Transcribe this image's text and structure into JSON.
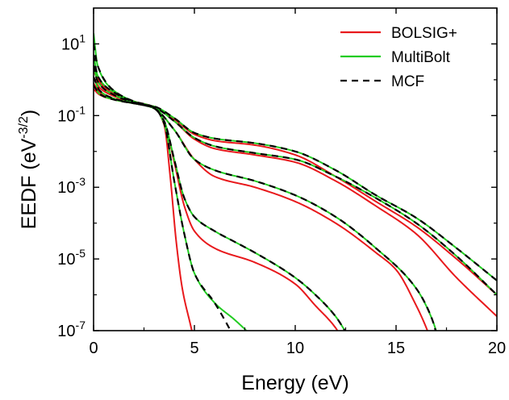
{
  "chart_data": {
    "type": "line",
    "xlabel": "Energy (eV)",
    "ylabel_main": "EEDF (eV",
    "ylabel_exp": "-3/2",
    "ylabel_close": ")",
    "xlim": [
      0,
      20
    ],
    "ylim": [
      1e-07,
      100
    ],
    "y_scale": "log",
    "x_ticks": [
      {
        "v": 0,
        "label": "0"
      },
      {
        "v": 5,
        "label": "5"
      },
      {
        "v": 10,
        "label": "10"
      },
      {
        "v": 15,
        "label": "15"
      },
      {
        "v": 20,
        "label": "20"
      }
    ],
    "y_ticks": [
      {
        "v": 10,
        "base": "10",
        "exp": "1"
      },
      {
        "v": 0.1,
        "base": "10",
        "exp": "-1"
      },
      {
        "v": 0.001,
        "base": "10",
        "exp": "-3"
      },
      {
        "v": 1e-05,
        "base": "10",
        "exp": "-5"
      },
      {
        "v": 1e-07,
        "base": "10",
        "exp": "-7"
      }
    ],
    "grid": false,
    "legend_position": "top-right",
    "series": [
      {
        "name": "BOLSIG+",
        "color": "#e8191c",
        "dash": "none",
        "curves": [
          [
            [
              0,
              2.0
            ],
            [
              0.3,
              0.9
            ],
            [
              1,
              0.45
            ],
            [
              2,
              0.25
            ],
            [
              3,
              0.17
            ],
            [
              3.5,
              0.055
            ],
            [
              3.8,
              0.002
            ],
            [
              4.1,
              3e-05
            ],
            [
              4.4,
              1.5e-06
            ],
            [
              4.8,
              1.5e-07
            ],
            [
              5.3,
              1e-08
            ]
          ],
          [
            [
              0,
              1.8
            ],
            [
              0.3,
              0.8
            ],
            [
              1,
              0.4
            ],
            [
              2,
              0.24
            ],
            [
              3,
              0.16
            ],
            [
              3.5,
              0.07
            ],
            [
              4,
              0.005
            ],
            [
              4.5,
              0.0003
            ],
            [
              5,
              6e-05
            ],
            [
              6,
              2e-05
            ],
            [
              8,
              8e-06
            ],
            [
              10,
              2e-06
            ],
            [
              11,
              5e-07
            ],
            [
              12,
              1.2e-07
            ],
            [
              12.5,
              4e-08
            ]
          ],
          [
            [
              0,
              1.2
            ],
            [
              0.3,
              0.6
            ],
            [
              1,
              0.35
            ],
            [
              2,
              0.23
            ],
            [
              3,
              0.16
            ],
            [
              4,
              0.04
            ],
            [
              5,
              0.006
            ],
            [
              6,
              0.002
            ],
            [
              8,
              0.001
            ],
            [
              10,
              0.0004
            ],
            [
              12,
              0.0001
            ],
            [
              14,
              1.5e-05
            ],
            [
              15,
              5e-06
            ],
            [
              16,
              5e-07
            ],
            [
              16.5,
              1.2e-07
            ],
            [
              17,
              2e-08
            ]
          ],
          [
            [
              0,
              0.8
            ],
            [
              0.3,
              0.45
            ],
            [
              1,
              0.3
            ],
            [
              2,
              0.22
            ],
            [
              3,
              0.17
            ],
            [
              4,
              0.07
            ],
            [
              5,
              0.022
            ],
            [
              6,
              0.012
            ],
            [
              8,
              0.008
            ],
            [
              10,
              0.005
            ],
            [
              12,
              0.0015
            ],
            [
              14,
              0.0003
            ],
            [
              16,
              5e-05
            ],
            [
              18,
              3e-06
            ],
            [
              20,
              2.5e-07
            ]
          ],
          [
            [
              0,
              0.55
            ],
            [
              0.3,
              0.38
            ],
            [
              1,
              0.28
            ],
            [
              2,
              0.22
            ],
            [
              3,
              0.18
            ],
            [
              4,
              0.08
            ],
            [
              5,
              0.03
            ],
            [
              6,
              0.02
            ],
            [
              8,
              0.015
            ],
            [
              10,
              0.008
            ],
            [
              12,
              0.002
            ],
            [
              14,
              0.0004
            ],
            [
              16,
              8e-05
            ],
            [
              18,
              1e-05
            ],
            [
              20,
              1e-06
            ]
          ]
        ]
      },
      {
        "name": "MultiBolt",
        "color": "#22cc22",
        "dash": "none",
        "curves": [
          [
            [
              0,
              20
            ],
            [
              0.2,
              2.5
            ],
            [
              1,
              0.5
            ],
            [
              2,
              0.25
            ],
            [
              3,
              0.17
            ],
            [
              3.5,
              0.06
            ],
            [
              4,
              0.0015
            ],
            [
              4.5,
              5e-05
            ],
            [
              5,
              4e-06
            ],
            [
              6,
              6e-07
            ],
            [
              7,
              2e-07
            ],
            [
              8,
              6e-08
            ]
          ],
          [
            [
              0,
              5
            ],
            [
              0.2,
              1.3
            ],
            [
              1,
              0.45
            ],
            [
              2,
              0.24
            ],
            [
              3,
              0.16
            ],
            [
              3.5,
              0.07
            ],
            [
              4,
              0.006
            ],
            [
              4.5,
              0.0005
            ],
            [
              5,
              0.00015
            ],
            [
              6,
              6e-05
            ],
            [
              7,
              3e-05
            ],
            [
              8,
              1.5e-05
            ],
            [
              10,
              3e-06
            ],
            [
              11,
              1e-06
            ],
            [
              12,
              2.5e-07
            ],
            [
              12.7,
              6e-08
            ]
          ],
          [
            [
              0,
              2.5
            ],
            [
              0.2,
              0.9
            ],
            [
              1,
              0.38
            ],
            [
              2,
              0.23
            ],
            [
              3,
              0.16
            ],
            [
              4,
              0.04
            ],
            [
              5,
              0.006
            ],
            [
              6,
              0.003
            ],
            [
              8,
              0.0015
            ],
            [
              10,
              0.0006
            ],
            [
              12,
              0.00015
            ],
            [
              14,
              2e-05
            ],
            [
              16,
              1.5e-06
            ],
            [
              16.8,
              2e-07
            ],
            [
              17.2,
              4e-08
            ]
          ],
          [
            [
              0,
              1.2
            ],
            [
              0.3,
              0.5
            ],
            [
              1,
              0.3
            ],
            [
              2,
              0.22
            ],
            [
              3,
              0.17
            ],
            [
              4,
              0.07
            ],
            [
              5,
              0.024
            ],
            [
              6,
              0.014
            ],
            [
              8,
              0.009
            ],
            [
              10,
              0.006
            ],
            [
              12,
              0.002
            ],
            [
              14,
              0.0005
            ],
            [
              16,
              0.0001
            ],
            [
              18,
              1.2e-05
            ],
            [
              20,
              1e-06
            ]
          ],
          [
            [
              0,
              0.7
            ],
            [
              0.3,
              0.4
            ],
            [
              1,
              0.28
            ],
            [
              2,
              0.22
            ],
            [
              3,
              0.18
            ],
            [
              4,
              0.085
            ],
            [
              5,
              0.033
            ],
            [
              6,
              0.023
            ],
            [
              8,
              0.017
            ],
            [
              10,
              0.01
            ],
            [
              12,
              0.003
            ],
            [
              14,
              0.0006
            ],
            [
              16,
              0.00014
            ],
            [
              18,
              2e-05
            ],
            [
              20,
              2.5e-06
            ]
          ]
        ]
      },
      {
        "name": "MCF",
        "color": "#000000",
        "dash": "8,6",
        "curves": [
          [
            [
              0,
              10
            ],
            [
              0.2,
              2.5
            ],
            [
              1,
              0.5
            ],
            [
              2,
              0.25
            ],
            [
              3,
              0.17
            ],
            [
              3.5,
              0.06
            ],
            [
              4,
              0.0015
            ],
            [
              4.5,
              5e-05
            ],
            [
              5,
              4e-06
            ],
            [
              6,
              6e-07
            ],
            [
              6.5,
              2e-07
            ],
            [
              7,
              6e-08
            ]
          ],
          [
            [
              0,
              5
            ],
            [
              0.2,
              1.3
            ],
            [
              1,
              0.45
            ],
            [
              2,
              0.24
            ],
            [
              3,
              0.16
            ],
            [
              3.5,
              0.07
            ],
            [
              4,
              0.006
            ],
            [
              4.5,
              0.0005
            ],
            [
              5,
              0.00015
            ],
            [
              6,
              6e-05
            ],
            [
              7,
              3e-05
            ],
            [
              8,
              1.5e-05
            ],
            [
              10,
              3e-06
            ],
            [
              11,
              1e-06
            ],
            [
              12,
              2.5e-07
            ],
            [
              12.7,
              6e-08
            ]
          ],
          [
            [
              0,
              2.5
            ],
            [
              0.2,
              0.9
            ],
            [
              1,
              0.38
            ],
            [
              2,
              0.23
            ],
            [
              3,
              0.16
            ],
            [
              4,
              0.04
            ],
            [
              5,
              0.006
            ],
            [
              6,
              0.003
            ],
            [
              8,
              0.0015
            ],
            [
              10,
              0.0006
            ],
            [
              12,
              0.00015
            ],
            [
              14,
              2e-05
            ],
            [
              16,
              1.5e-06
            ],
            [
              16.8,
              2e-07
            ],
            [
              17.1,
              5e-08
            ]
          ],
          [
            [
              0,
              1.2
            ],
            [
              0.3,
              0.5
            ],
            [
              1,
              0.3
            ],
            [
              2,
              0.22
            ],
            [
              3,
              0.17
            ],
            [
              4,
              0.07
            ],
            [
              5,
              0.024
            ],
            [
              6,
              0.014
            ],
            [
              8,
              0.009
            ],
            [
              10,
              0.006
            ],
            [
              12,
              0.002
            ],
            [
              14,
              0.0005
            ],
            [
              16,
              0.0001
            ],
            [
              18,
              1.2e-05
            ],
            [
              20,
              1e-06
            ]
          ],
          [
            [
              0,
              0.7
            ],
            [
              0.3,
              0.4
            ],
            [
              1,
              0.28
            ],
            [
              2,
              0.22
            ],
            [
              3,
              0.18
            ],
            [
              4,
              0.085
            ],
            [
              5,
              0.033
            ],
            [
              6,
              0.023
            ],
            [
              8,
              0.017
            ],
            [
              10,
              0.01
            ],
            [
              12,
              0.003
            ],
            [
              14,
              0.0006
            ],
            [
              16,
              0.00014
            ],
            [
              18,
              2e-05
            ],
            [
              20,
              2.5e-06
            ]
          ]
        ]
      }
    ]
  }
}
